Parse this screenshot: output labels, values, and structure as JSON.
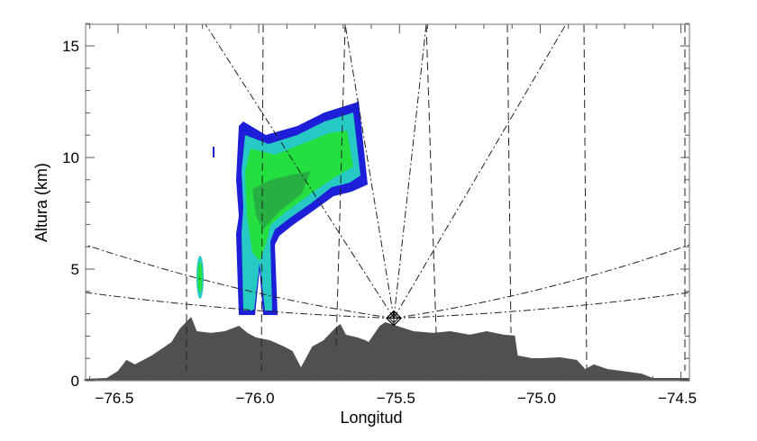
{
  "chart_data": {
    "type": "area",
    "title": "",
    "xlabel": "Longitud",
    "ylabel": "Altura (km)",
    "xlim": [
      -76.615,
      -74.47
    ],
    "ylim": [
      -0.1,
      16
    ],
    "x_ticks": [
      "−76.5",
      "−76.0",
      "−75.5",
      "−75.0",
      "−74.5"
    ],
    "x_tick_values": [
      -76.5,
      -76.0,
      -75.5,
      -75.0,
      -74.5
    ],
    "y_ticks": [
      "0",
      "5",
      "10",
      "15"
    ],
    "y_tick_values": [
      0,
      5,
      10,
      15
    ],
    "grid": false,
    "radar_site": {
      "lon": -75.52,
      "alt": 2.8,
      "marker": "diamond-cross-icon"
    },
    "terrain": {
      "color": "#505050",
      "lon": [
        -76.62,
        -76.54,
        -76.5,
        -76.47,
        -76.44,
        -76.38,
        -76.31,
        -76.28,
        -76.24,
        -76.22,
        -76.17,
        -76.12,
        -76.07,
        -76.04,
        -76.01,
        -75.96,
        -75.91,
        -75.88,
        -75.85,
        -75.81,
        -75.77,
        -75.73,
        -75.71,
        -75.69,
        -75.65,
        -75.62,
        -75.61,
        -75.57,
        -75.55,
        -75.51,
        -75.45,
        -75.38,
        -75.32,
        -75.25,
        -75.19,
        -75.13,
        -75.09,
        -75.08,
        -75.03,
        -75.0,
        -74.93,
        -74.87,
        -74.84,
        -74.81,
        -74.76,
        -74.71,
        -74.64,
        -74.6,
        -74.47
      ],
      "alt": [
        0.08,
        0.12,
        0.44,
        0.93,
        0.73,
        1.13,
        1.73,
        2.34,
        2.86,
        2.22,
        2.14,
        2.22,
        2.46,
        2.14,
        1.94,
        1.81,
        1.53,
        1.33,
        0.6,
        1.53,
        1.81,
        2.34,
        2.54,
        2.06,
        1.94,
        1.81,
        1.73,
        2.46,
        2.62,
        2.46,
        2.22,
        2.14,
        2.22,
        2.06,
        2.22,
        2.06,
        2.02,
        1.13,
        1.01,
        1.01,
        1.05,
        0.93,
        0.52,
        0.73,
        0.52,
        0.44,
        0.32,
        0.12,
        0.12
      ]
    },
    "reflectivity_colors": [
      "#1c1ed8",
      "#27c9c4",
      "#23e040",
      "#2a9a45"
    ]
  }
}
